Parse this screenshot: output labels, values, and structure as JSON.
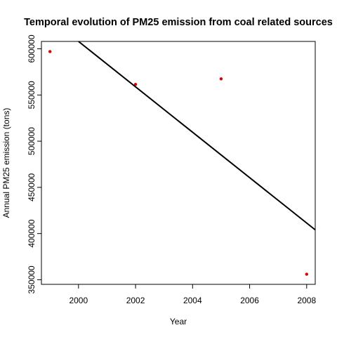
{
  "chart_data": {
    "type": "scatter",
    "title": "Temporal evolution of PM25 emission from coal related sources",
    "xlabel": "Year",
    "ylabel": "Annual PM25 emission (tons)",
    "xlim": [
      1998.7,
      2008.3
    ],
    "ylim": [
      345000,
      608000
    ],
    "x_ticks": [
      2000,
      2002,
      2004,
      2006,
      2008
    ],
    "x_tick_labels": [
      "2000",
      "2002",
      "2004",
      "2006",
      "2008"
    ],
    "y_ticks": [
      350000,
      400000,
      450000,
      500000,
      550000,
      600000
    ],
    "y_tick_labels": [
      "350000",
      "400000",
      "450000",
      "500000",
      "550000",
      "600000"
    ],
    "grid": false,
    "legend": "none",
    "series": [
      {
        "type": "scatter",
        "x": [
          1999,
          2002,
          2005,
          2008
        ],
        "y": [
          597000,
          561500,
          567500,
          356000
        ],
        "color": "#dd0000"
      },
      {
        "type": "line",
        "x": [
          2000,
          2008.3
        ],
        "y": [
          608000,
          404000
        ],
        "color": "#000000"
      }
    ]
  }
}
